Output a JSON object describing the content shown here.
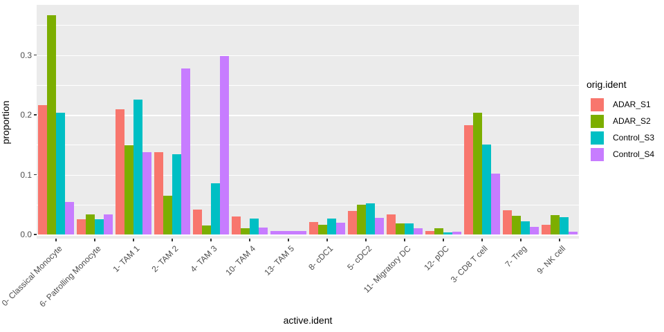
{
  "chart_data": {
    "type": "bar",
    "title": "",
    "xlabel": "active.ident",
    "ylabel": "proportion",
    "legend_title": "orig.ident",
    "legend_position": "right",
    "grid": true,
    "panel_bg": "#EBEBEB",
    "grid_color": "#FFFFFF",
    "ylim": [
      0,
      0.384
    ],
    "yticks": [
      0.0,
      0.1,
      0.2,
      0.3
    ],
    "ytick_labels": [
      "0.0",
      "0.1",
      "0.2",
      "0.3"
    ],
    "minor_ticks": [
      0.05,
      0.15,
      0.25,
      0.35
    ],
    "categories": [
      "0- Classical Monocyte",
      "6- Patrolling Monocyte",
      "1- TAM 1",
      "2- TAM 2",
      "4- TAM 3",
      "10- TAM 4",
      "13- TAM 5",
      "8- cDC1",
      "5- cDC2",
      "11- Migratory DC",
      "12- pDC",
      "3- CD8 T cell",
      "7- Treg",
      "9- NK cell"
    ],
    "series": [
      {
        "name": "ADAR_S1",
        "color": "#F8766D",
        "values": [
          0.216,
          0.026,
          0.209,
          0.138,
          0.042,
          0.03,
          null,
          0.021,
          0.039,
          0.033,
          0.006,
          0.183,
          0.041,
          0.016
        ]
      },
      {
        "name": "ADAR_S2",
        "color": "#7CAE00",
        "values": [
          0.367,
          0.033,
          0.149,
          0.065,
          0.015,
          0.011,
          null,
          0.016,
          0.05,
          0.018,
          0.01,
          0.204,
          0.031,
          0.032
        ]
      },
      {
        "name": "Control_S3",
        "color": "#00BFC4",
        "values": [
          0.203,
          0.026,
          0.225,
          0.134,
          0.086,
          0.027,
          null,
          0.027,
          0.052,
          0.019,
          0.003,
          0.15,
          0.022,
          0.029
        ]
      },
      {
        "name": "Control_S4",
        "color": "#C77CFF",
        "values": [
          0.054,
          0.034,
          0.138,
          0.277,
          0.298,
          0.012,
          0.006,
          0.02,
          0.028,
          0.01,
          0.005,
          0.102,
          0.013,
          0.005
        ]
      }
    ]
  }
}
